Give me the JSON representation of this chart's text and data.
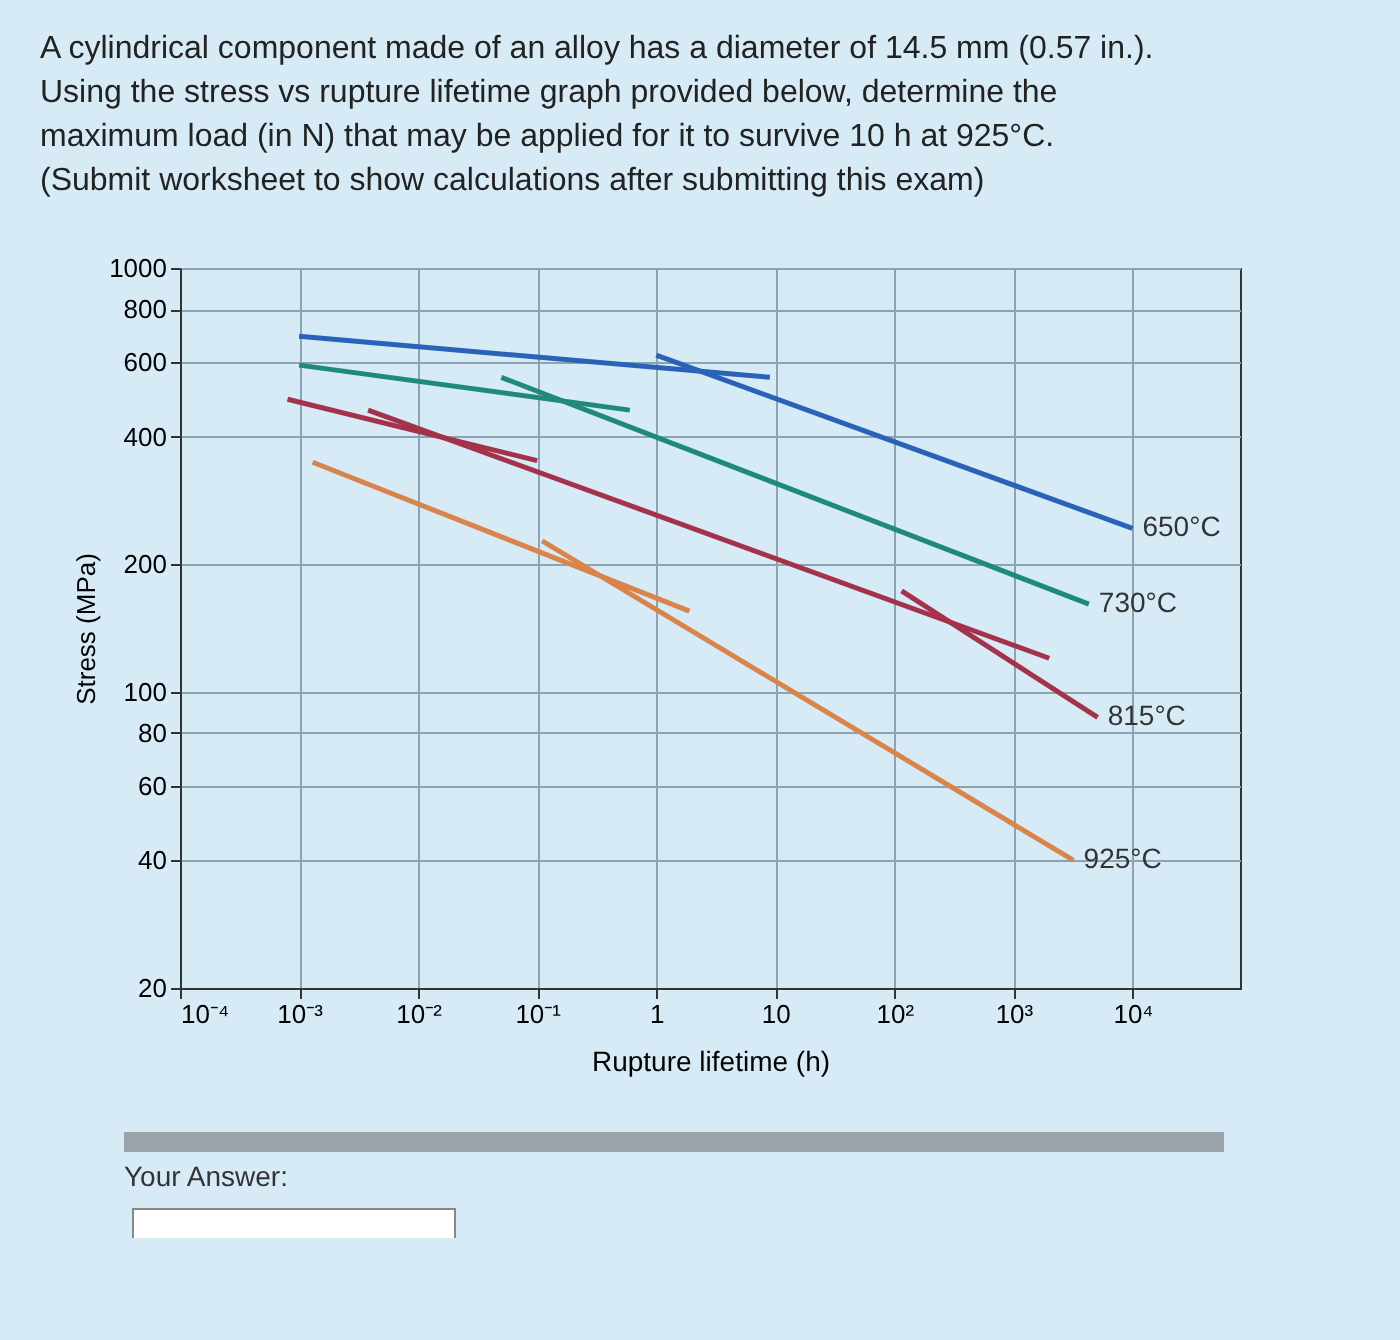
{
  "chart_data": {
    "type": "line",
    "title": "A cylindrical component made of an alloy has a diameter of 14.5 mm (0.57 in.). Using the stress vs rupture lifetime graph provided below, determine the maximum load (in N) that may be applied for it to survive 10 h at 925°C. (Submit worksheet to show calculations after submitting this exam)",
    "xlabel": "Rupture lifetime (h)",
    "ylabel": "Stress (MPa)",
    "series": [
      {
        "color": "#2a62b8",
        "x": [
          0.001,
          9
        ],
        "values": [
          690,
          552
        ]
      },
      {
        "name": "650°C",
        "color": "#2a62b8",
        "x": [
          1,
          10000
        ],
        "values": [
          623,
          243
        ]
      },
      {
        "color": "#1f8a78",
        "x": [
          0.001,
          0.6
        ],
        "values": [
          590,
          462
        ]
      },
      {
        "name": "730°C",
        "color": "#1f8a78",
        "x": [
          0.05,
          4300
        ],
        "values": [
          552,
          161
        ]
      },
      {
        "color": "#a3324a",
        "x": [
          0.0008,
          0.1
        ],
        "values": [
          490,
          351
        ]
      },
      {
        "color": "#a3324a",
        "x": [
          0.0038,
          2000
        ],
        "values": [
          462,
          120
        ]
      },
      {
        "name": "815°C",
        "color": "#a3324a",
        "x": [
          115,
          5100
        ],
        "values": [
          173,
          87
        ]
      },
      {
        "color": "#d9844a",
        "x": [
          0.0013,
          1.9
        ],
        "values": [
          348,
          155
        ]
      },
      {
        "name": "925°C",
        "color": "#d9844a",
        "x": [
          0.11,
          3200
        ],
        "values": [
          227,
          40
        ]
      }
    ],
    "annotations": [
      "Your Answer:"
    ],
    "log": "xy",
    "grid": true,
    "xlim": [
      0.0001,
      80000
    ],
    "ylim": [
      20,
      1000
    ],
    "xticks": [
      {
        "value": 0.0001,
        "label": "10⁻⁴"
      },
      {
        "value": 0.001,
        "label": "10⁻³"
      },
      {
        "value": 0.01,
        "label": "10⁻²"
      },
      {
        "value": 0.1,
        "label": "10⁻¹"
      },
      1,
      10,
      {
        "value": 100,
        "label": "10²"
      },
      {
        "value": 1000,
        "label": "10³"
      },
      {
        "value": 10000,
        "label": "10⁴"
      }
    ],
    "yticks": [
      20,
      40,
      60,
      80,
      100,
      200,
      400,
      600,
      800,
      1000
    ]
  }
}
